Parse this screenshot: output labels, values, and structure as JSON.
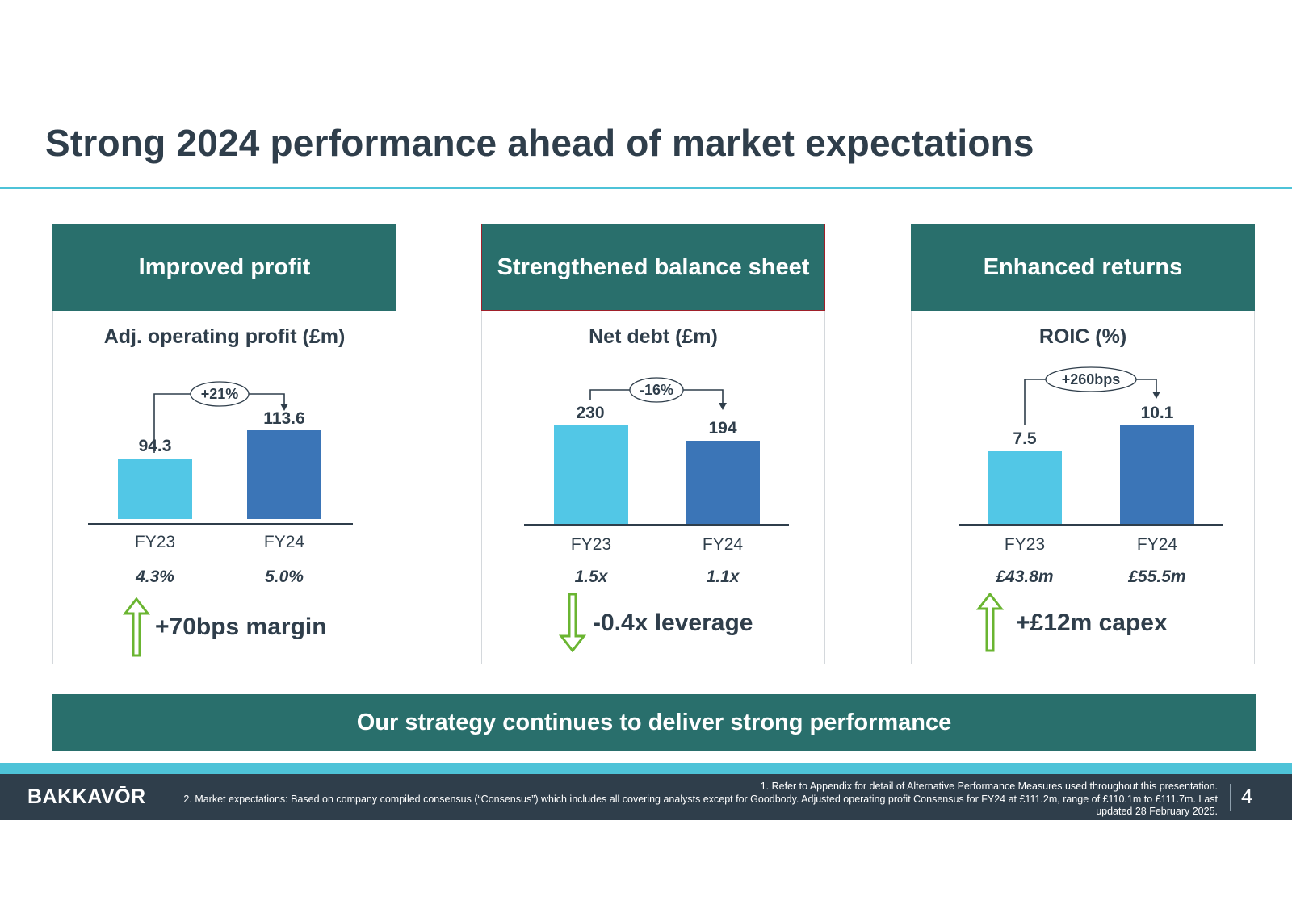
{
  "title": "Strong 2024 performance ahead of market expectations",
  "panels": [
    {
      "header": "Improved profit",
      "metric": "Adj. operating profit (£m)",
      "change_label": "+21%",
      "categories": [
        "FY23",
        "FY24"
      ],
      "values": [
        "94.3",
        "113.6"
      ],
      "sub_values": [
        "4.3%",
        "5.0%"
      ],
      "callout": "+70bps margin",
      "trend_icon": "up-arrow-icon"
    },
    {
      "header": "Strengthened balance sheet",
      "metric": "Net debt (£m)",
      "change_label": "-16%",
      "categories": [
        "FY23",
        "FY24"
      ],
      "values": [
        "230",
        "194"
      ],
      "sub_values": [
        "1.5x",
        "1.1x"
      ],
      "callout": "-0.4x leverage",
      "trend_icon": "down-arrow-icon"
    },
    {
      "header": "Enhanced returns",
      "metric": "ROIC (%)",
      "change_label": "+260bps",
      "categories": [
        "FY23",
        "FY24"
      ],
      "values": [
        "7.5",
        "10.1"
      ],
      "sub_values": [
        "£43.8m",
        "£55.5m"
      ],
      "callout": "+£12m capex",
      "trend_icon": "up-arrow-icon"
    }
  ],
  "banner": "Our strategy continues to deliver strong performance",
  "footer": {
    "logo": "BAKKAVŌR",
    "note_1": "1. Refer to Appendix for detail of Alternative Performance Measures used throughout this presentation.",
    "note_2": "2. Market expectations: Based on company compiled consensus (“Consensus”) which includes all covering analysts except for Goodbody. Adjusted operating profit Consensus for FY24 at £111.2m, range of £110.1m to £111.7m. Last updated 28 February 2025.",
    "page_number": "4"
  },
  "colors": {
    "header_bg": "#296f6c",
    "fy23_bar": "#52c7e6",
    "fy24_bar": "#3b75b7",
    "arrow_green": "#6ab531",
    "text_dark": "#2f3e4b",
    "accent_line": "#4ec3d8"
  },
  "chart_data": [
    {
      "type": "bar",
      "title": "Adj. operating profit (£m)",
      "categories": [
        "FY23",
        "FY24"
      ],
      "values": [
        94.3,
        113.6
      ]
    },
    {
      "type": "bar",
      "title": "Net debt (£m)",
      "categories": [
        "FY23",
        "FY24"
      ],
      "values": [
        230,
        194
      ]
    },
    {
      "type": "bar",
      "title": "ROIC (%)",
      "categories": [
        "FY23",
        "FY24"
      ],
      "values": [
        7.5,
        10.1
      ]
    }
  ]
}
